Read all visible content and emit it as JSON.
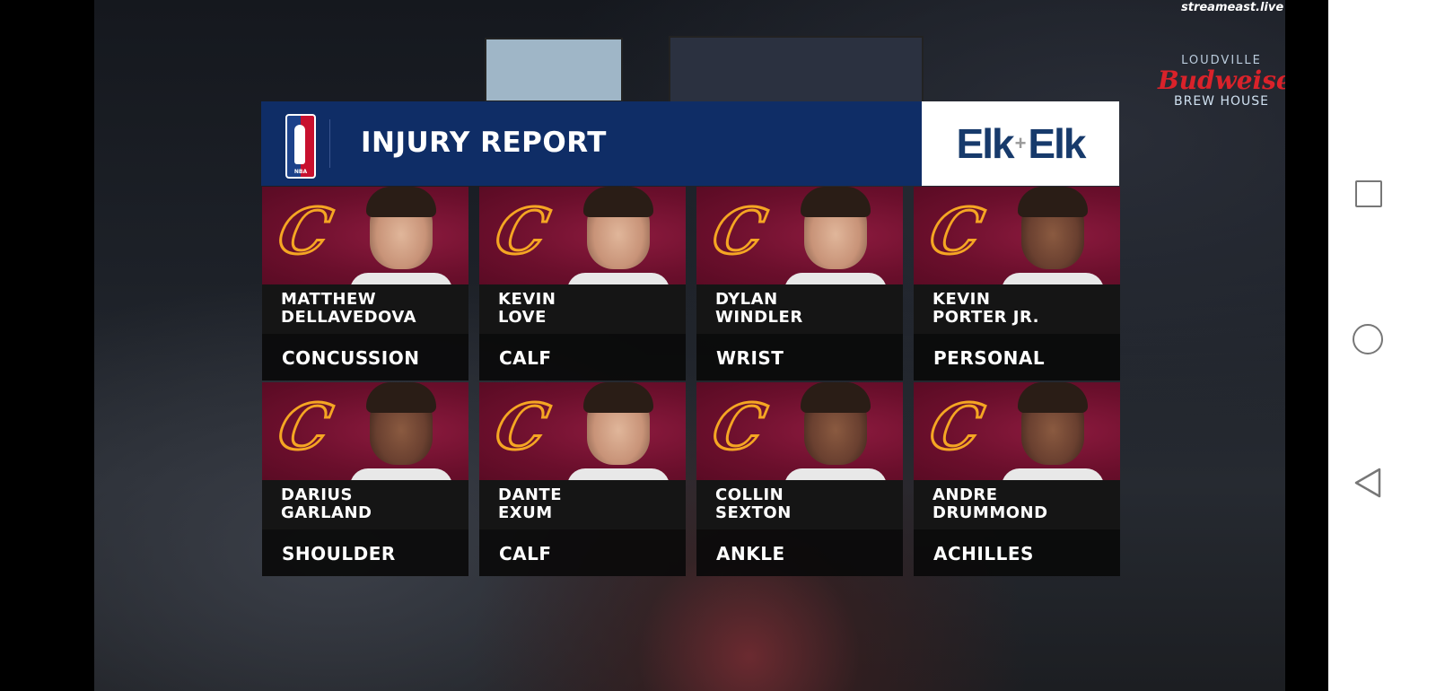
{
  "overlay": {
    "title": "INJURY REPORT",
    "league_logo_text": "NBA",
    "sponsor": {
      "left": "Elk",
      "plus": "+",
      "right": "Elk"
    },
    "players": [
      {
        "first": "MATTHEW",
        "last": "DELLAVEDOVA",
        "injury": "CONCUSSION"
      },
      {
        "first": "KEVIN",
        "last": "LOVE",
        "injury": "CALF"
      },
      {
        "first": "DYLAN",
        "last": "WINDLER",
        "injury": "WRIST"
      },
      {
        "first": "KEVIN",
        "last": "PORTER JR.",
        "injury": "PERSONAL"
      },
      {
        "first": "DARIUS",
        "last": "GARLAND",
        "injury": "SHOULDER"
      },
      {
        "first": "DANTE",
        "last": "EXUM",
        "injury": "CALF"
      },
      {
        "first": "COLLIN",
        "last": "SEXTON",
        "injury": "ANKLE"
      },
      {
        "first": "ANDRE",
        "last": "DRUMMOND",
        "injury": "ACHILLES"
      }
    ],
    "team_logo_letter": "C"
  },
  "background": {
    "watermark": "streameast.live",
    "arena_sign": {
      "line1": "LOUDVILLE",
      "line2": "Budweiser",
      "line3": "BREW HOUSE"
    }
  },
  "colors": {
    "header_blue": "#0f2d66",
    "cavs_wine": "#6b0f2c",
    "cavs_gold": "#f5a623",
    "sponsor_blue": "#173a6b"
  },
  "navbar": {
    "icons": [
      "recents-square-icon",
      "home-circle-icon",
      "back-triangle-icon"
    ]
  }
}
